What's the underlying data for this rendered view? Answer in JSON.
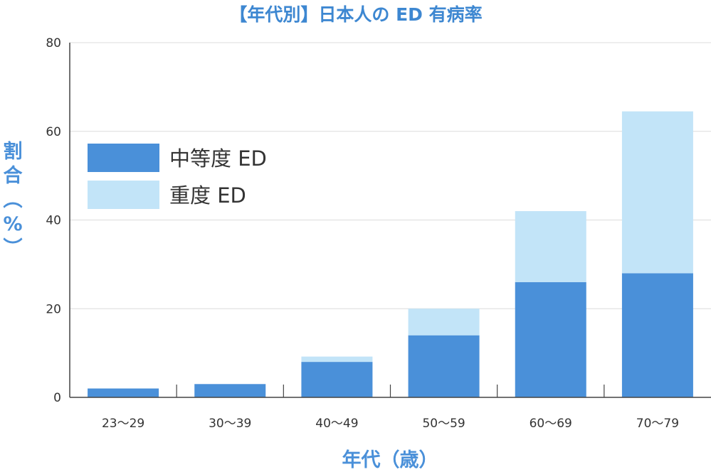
{
  "chart_data": {
    "type": "bar",
    "stacked": true,
    "title": "【年代別】日本人の ED 有病率",
    "xlabel": "年代（歳）",
    "ylabel": "割合（%）",
    "categories": [
      "23〜29",
      "30〜39",
      "40〜49",
      "50〜59",
      "60〜69",
      "70〜79"
    ],
    "series": [
      {
        "name": "中等度 ED",
        "values": [
          2,
          3,
          8,
          14,
          26,
          28
        ],
        "color": "#4a90d9"
      },
      {
        "name": "重度 ED",
        "values": [
          0,
          0,
          1.2,
          6,
          16,
          36.5
        ],
        "color": "#c2e4f8"
      }
    ],
    "ylim": [
      0,
      80
    ],
    "yticks": [
      0,
      20,
      40,
      60,
      80
    ],
    "grid": true,
    "legend_position": "top-left"
  }
}
